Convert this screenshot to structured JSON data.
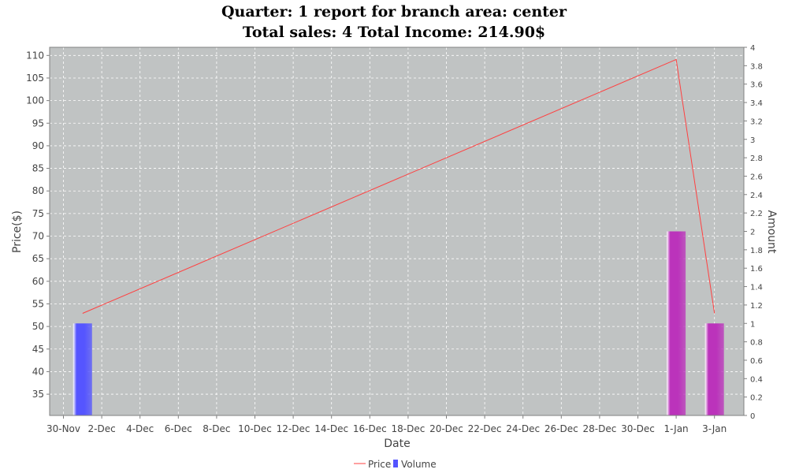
{
  "chart_data": {
    "type": "bar+line",
    "title_lines": [
      "Quarter: 1 report for branch area: center",
      "Total sales: 4 Total Income: 214.90$"
    ],
    "xlabel": "Date",
    "ylabel_left": "Price($)",
    "ylabel_right": "Amount",
    "x_tick_labels": [
      "30-Nov",
      "2-Dec",
      "4-Dec",
      "6-Dec",
      "8-Dec",
      "10-Dec",
      "12-Dec",
      "14-Dec",
      "16-Dec",
      "18-Dec",
      "20-Dec",
      "22-Dec",
      "24-Dec",
      "26-Dec",
      "28-Dec",
      "30-Dec",
      "1-Jan",
      "3-Jan"
    ],
    "y_left_ticks": [
      35,
      40,
      45,
      50,
      55,
      60,
      65,
      70,
      75,
      80,
      85,
      90,
      95,
      100,
      105,
      110
    ],
    "y_right_ticks": [
      "0",
      "0.2",
      "0.4",
      "0.6",
      "0.8",
      "1",
      "1.2",
      "1.4",
      "1.6",
      "1.8",
      "2",
      "2.2",
      "2.4",
      "2.6",
      "2.8",
      "3",
      "3.2",
      "3.4",
      "3.6",
      "3.8",
      "4"
    ],
    "ylim_left": [
      30.3,
      111.8
    ],
    "ylim_right": [
      0,
      4
    ],
    "grid": true,
    "legend_position": "bottom-center",
    "series": [
      {
        "name": "Price",
        "kind": "line",
        "axis": "left",
        "color": "#ff4040",
        "points": [
          {
            "x": "1-Dec",
            "y": 52.9
          },
          {
            "x": "1-Jan",
            "y": 109.1
          },
          {
            "x": "3-Jan",
            "y": 52.9
          }
        ]
      },
      {
        "name": "Volume",
        "kind": "bar",
        "axis": "right",
        "points": [
          {
            "x": "1-Dec",
            "y": 1,
            "color": "#5555ff"
          },
          {
            "x": "1-Jan",
            "y": 2,
            "color": "#bb33bb"
          },
          {
            "x": "3-Jan",
            "y": 1,
            "color": "#bb33bb"
          }
        ]
      }
    ]
  }
}
